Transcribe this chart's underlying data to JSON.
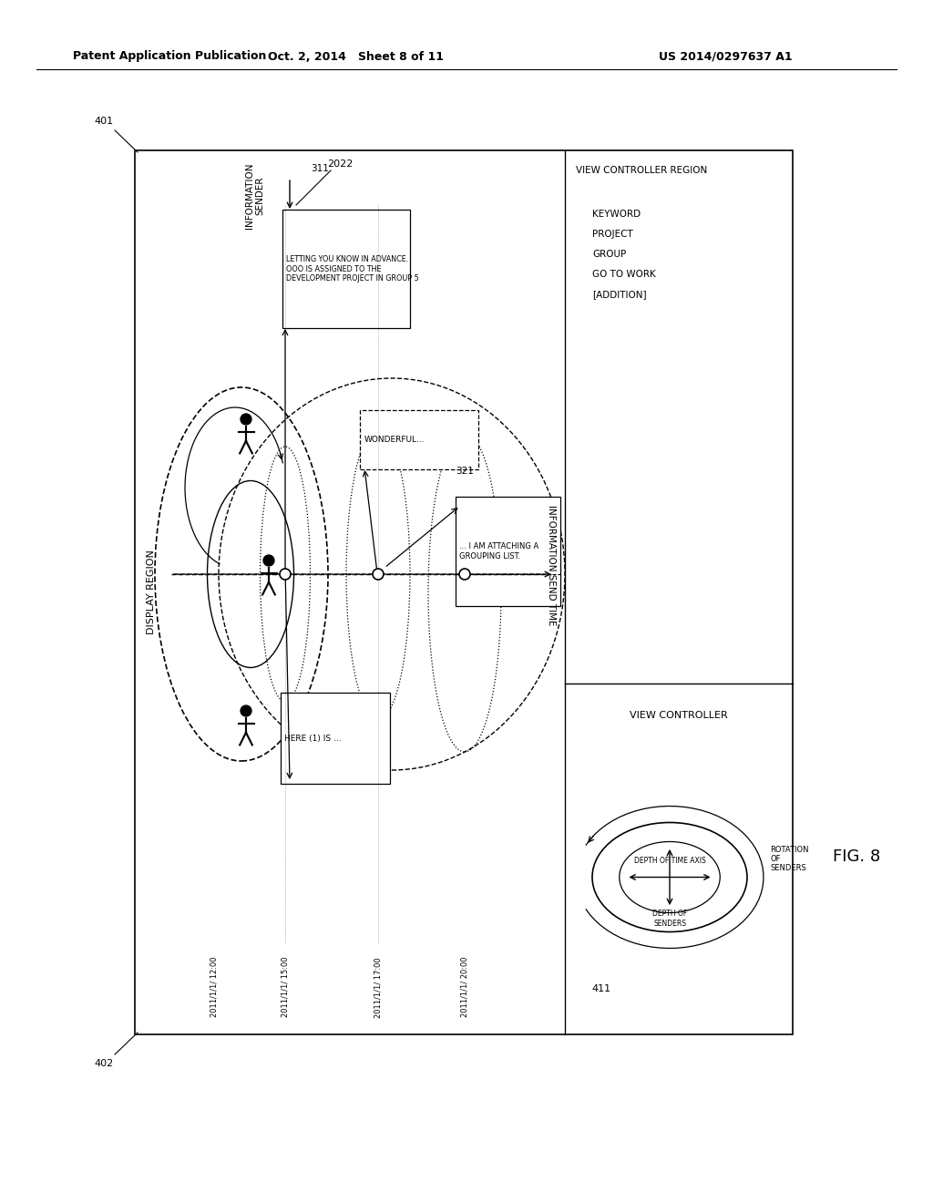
{
  "title_left": "Patent Application Publication",
  "title_mid": "Oct. 2, 2014   Sheet 8 of 11",
  "title_right": "US 2014/0297637 A1",
  "fig_label": "FIG. 8",
  "label_401": "401",
  "label_402": "402",
  "label_2022": "2022",
  "label_311": "311",
  "label_321": "321",
  "label_411": "411",
  "display_region_text": "DISPLAY REGION",
  "info_sender_text": "INFORMATION\nSENDER",
  "info_send_time_text": "INFORMATION SEND TIME",
  "view_controller_region": "VIEW CONTROLLER REGION",
  "view_controller": "VIEW CONTROLLER",
  "keyword_text": "KEYWORD\nPROJECT\nGROUP\nGO TO WORK\n[ADDITION]",
  "depth_time_axis": "DEPTH OF TIME AXIS",
  "depth_senders": "DEPTH OF\nSENDERS",
  "rotation_senders": "ROTATION\nOF\nSENDERS",
  "msg1": "LETTING YOU KNOW IN ADVANCE.\nOOO IS ASSIGNED TO THE\nDEVELOPMENT PROJECT IN GROUP 5",
  "msg2": "WONDERFUL...",
  "msg3": "HERE (1) IS ...",
  "msg4": "... I AM ATTACHING A\nGROUPING LIST.",
  "time1": "2011/1/1/ 12:00",
  "time2": "2011/1/1/ 15:00",
  "time3": "2011/1/1/ 17:00",
  "time4": "2011/1/1/ 20:00",
  "background_color": "#ffffff",
  "line_color": "#000000"
}
